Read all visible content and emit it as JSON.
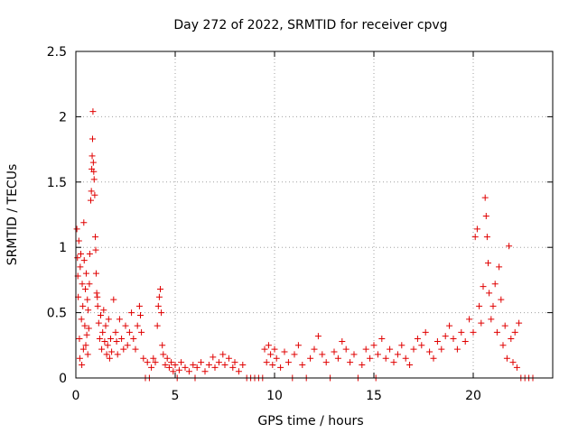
{
  "chart_data": {
    "type": "scatter",
    "title": "Day 272 of 2022, SRMTID for receiver cpvg",
    "xlabel": "GPS time / hours",
    "ylabel": "SRMTID / TECUs",
    "xlim": [
      0,
      24
    ],
    "ylim": [
      0,
      2.5
    ],
    "x_ticks": [
      0,
      5,
      10,
      15,
      20
    ],
    "x_tick_labels": [
      "0",
      "5",
      "10",
      "15",
      "20"
    ],
    "y_ticks": [
      0,
      0.5,
      1,
      1.5,
      2,
      2.5
    ],
    "y_tick_labels": [
      "0",
      "0.5",
      "1",
      "1.5",
      "2",
      "2.5"
    ],
    "grid": true,
    "marker": "+",
    "color": "#e00000",
    "series": [
      {
        "name": "SRMTID",
        "points": [
          [
            0.05,
            1.14
          ],
          [
            0.08,
            0.92
          ],
          [
            0.1,
            0.78
          ],
          [
            0.12,
            0.62
          ],
          [
            0.15,
            1.05
          ],
          [
            0.18,
            0.3
          ],
          [
            0.2,
            0.15
          ],
          [
            0.22,
            0.85
          ],
          [
            0.25,
            0.95
          ],
          [
            0.28,
            0.45
          ],
          [
            0.3,
            0.1
          ],
          [
            0.32,
            0.72
          ],
          [
            0.35,
            0.55
          ],
          [
            0.38,
            0.22
          ],
          [
            0.4,
            1.19
          ],
          [
            0.42,
            0.9
          ],
          [
            0.45,
            0.4
          ],
          [
            0.48,
            0.68
          ],
          [
            0.5,
            0.25
          ],
          [
            0.52,
            0.8
          ],
          [
            0.55,
            0.33
          ],
          [
            0.58,
            0.6
          ],
          [
            0.6,
            0.18
          ],
          [
            0.62,
            0.52
          ],
          [
            0.65,
            0.38
          ],
          [
            0.68,
            0.72
          ],
          [
            0.7,
            0.95
          ],
          [
            0.75,
            1.36
          ],
          [
            0.78,
            1.43
          ],
          [
            0.8,
            1.6
          ],
          [
            0.82,
            1.7
          ],
          [
            0.84,
            1.83
          ],
          [
            0.86,
            2.04
          ],
          [
            0.88,
            1.65
          ],
          [
            0.9,
            1.58
          ],
          [
            0.92,
            1.52
          ],
          [
            0.95,
            1.4
          ],
          [
            0.98,
            1.08
          ],
          [
            1.0,
            0.98
          ],
          [
            1.02,
            0.8
          ],
          [
            1.05,
            0.65
          ],
          [
            1.08,
            0.62
          ],
          [
            1.1,
            0.55
          ],
          [
            1.15,
            0.42
          ],
          [
            1.2,
            0.3
          ],
          [
            1.25,
            0.48
          ],
          [
            1.3,
            0.22
          ],
          [
            1.35,
            0.35
          ],
          [
            1.4,
            0.52
          ],
          [
            1.45,
            0.28
          ],
          [
            1.5,
            0.4
          ],
          [
            1.55,
            0.18
          ],
          [
            1.6,
            0.25
          ],
          [
            1.65,
            0.45
          ],
          [
            1.7,
            0.15
          ],
          [
            1.75,
            0.3
          ],
          [
            1.8,
            0.2
          ],
          [
            1.9,
            0.6
          ],
          [
            2.0,
            0.35
          ],
          [
            2.05,
            0.28
          ],
          [
            2.1,
            0.18
          ],
          [
            2.2,
            0.45
          ],
          [
            2.3,
            0.3
          ],
          [
            2.4,
            0.22
          ],
          [
            2.5,
            0.4
          ],
          [
            2.6,
            0.25
          ],
          [
            2.7,
            0.35
          ],
          [
            2.8,
            0.5
          ],
          [
            2.9,
            0.3
          ],
          [
            3.0,
            0.22
          ],
          [
            3.1,
            0.4
          ],
          [
            3.2,
            0.55
          ],
          [
            3.25,
            0.48
          ],
          [
            3.3,
            0.35
          ],
          [
            3.4,
            0.15
          ],
          [
            3.5,
            0.0
          ],
          [
            3.6,
            0.12
          ],
          [
            3.7,
            0.0
          ],
          [
            3.8,
            0.08
          ],
          [
            3.9,
            0.15
          ],
          [
            4.0,
            0.12
          ],
          [
            4.1,
            0.4
          ],
          [
            4.15,
            0.55
          ],
          [
            4.2,
            0.62
          ],
          [
            4.25,
            0.68
          ],
          [
            4.3,
            0.5
          ],
          [
            4.35,
            0.25
          ],
          [
            4.4,
            0.18
          ],
          [
            4.5,
            0.1
          ],
          [
            4.6,
            0.15
          ],
          [
            4.7,
            0.08
          ],
          [
            4.8,
            0.12
          ],
          [
            4.9,
            0.05
          ],
          [
            5.0,
            0.1
          ],
          [
            5.1,
            0.0
          ],
          [
            5.2,
            0.06
          ],
          [
            5.3,
            0.12
          ],
          [
            5.5,
            0.08
          ],
          [
            5.7,
            0.05
          ],
          [
            5.9,
            0.1
          ],
          [
            6.0,
            0.0
          ],
          [
            6.1,
            0.08
          ],
          [
            6.3,
            0.12
          ],
          [
            6.5,
            0.05
          ],
          [
            6.7,
            0.1
          ],
          [
            6.9,
            0.16
          ],
          [
            7.0,
            0.08
          ],
          [
            7.2,
            0.12
          ],
          [
            7.4,
            0.18
          ],
          [
            7.5,
            0.1
          ],
          [
            7.7,
            0.15
          ],
          [
            7.9,
            0.08
          ],
          [
            8.0,
            0.12
          ],
          [
            8.2,
            0.05
          ],
          [
            8.4,
            0.1
          ],
          [
            8.6,
            0.0
          ],
          [
            8.8,
            0.0
          ],
          [
            9.0,
            0.0
          ],
          [
            9.2,
            0.0
          ],
          [
            9.4,
            0.0
          ],
          [
            9.5,
            0.22
          ],
          [
            9.6,
            0.12
          ],
          [
            9.7,
            0.25
          ],
          [
            9.8,
            0.18
          ],
          [
            9.9,
            0.1
          ],
          [
            10.0,
            0.22
          ],
          [
            10.1,
            0.15
          ],
          [
            10.3,
            0.08
          ],
          [
            10.5,
            0.2
          ],
          [
            10.7,
            0.12
          ],
          [
            10.9,
            0.0
          ],
          [
            11.0,
            0.18
          ],
          [
            11.2,
            0.25
          ],
          [
            11.4,
            0.1
          ],
          [
            11.6,
            0.0
          ],
          [
            11.8,
            0.15
          ],
          [
            12.0,
            0.22
          ],
          [
            12.2,
            0.32
          ],
          [
            12.4,
            0.18
          ],
          [
            12.6,
            0.12
          ],
          [
            12.8,
            0.0
          ],
          [
            13.0,
            0.2
          ],
          [
            13.2,
            0.15
          ],
          [
            13.4,
            0.28
          ],
          [
            13.6,
            0.22
          ],
          [
            13.8,
            0.12
          ],
          [
            14.0,
            0.18
          ],
          [
            14.2,
            0.0
          ],
          [
            14.4,
            0.1
          ],
          [
            14.6,
            0.22
          ],
          [
            14.8,
            0.15
          ],
          [
            15.0,
            0.25
          ],
          [
            15.1,
            0.0
          ],
          [
            15.2,
            0.18
          ],
          [
            15.4,
            0.3
          ],
          [
            15.6,
            0.15
          ],
          [
            15.8,
            0.22
          ],
          [
            16.0,
            0.12
          ],
          [
            16.2,
            0.18
          ],
          [
            16.4,
            0.25
          ],
          [
            16.6,
            0.15
          ],
          [
            16.8,
            0.1
          ],
          [
            17.0,
            0.22
          ],
          [
            17.2,
            0.3
          ],
          [
            17.4,
            0.25
          ],
          [
            17.6,
            0.35
          ],
          [
            17.8,
            0.2
          ],
          [
            18.0,
            0.15
          ],
          [
            18.2,
            0.28
          ],
          [
            18.4,
            0.22
          ],
          [
            18.6,
            0.32
          ],
          [
            18.8,
            0.4
          ],
          [
            19.0,
            0.3
          ],
          [
            19.2,
            0.22
          ],
          [
            19.4,
            0.35
          ],
          [
            19.6,
            0.28
          ],
          [
            19.8,
            0.45
          ],
          [
            20.0,
            0.35
          ],
          [
            20.1,
            1.08
          ],
          [
            20.2,
            1.14
          ],
          [
            20.3,
            0.55
          ],
          [
            20.4,
            0.42
          ],
          [
            20.5,
            0.7
          ],
          [
            20.6,
            1.38
          ],
          [
            20.65,
            1.24
          ],
          [
            20.7,
            1.08
          ],
          [
            20.75,
            0.88
          ],
          [
            20.8,
            0.65
          ],
          [
            20.9,
            0.45
          ],
          [
            21.0,
            0.55
          ],
          [
            21.1,
            0.72
          ],
          [
            21.2,
            0.35
          ],
          [
            21.3,
            0.85
          ],
          [
            21.4,
            0.6
          ],
          [
            21.5,
            0.25
          ],
          [
            21.6,
            0.4
          ],
          [
            21.7,
            0.15
          ],
          [
            21.8,
            1.01
          ],
          [
            21.9,
            0.3
          ],
          [
            22.0,
            0.12
          ],
          [
            22.1,
            0.35
          ],
          [
            22.2,
            0.08
          ],
          [
            22.3,
            0.42
          ],
          [
            22.4,
            0.0
          ],
          [
            22.6,
            0.0
          ],
          [
            22.8,
            0.0
          ],
          [
            23.0,
            0.0
          ]
        ]
      }
    ]
  }
}
